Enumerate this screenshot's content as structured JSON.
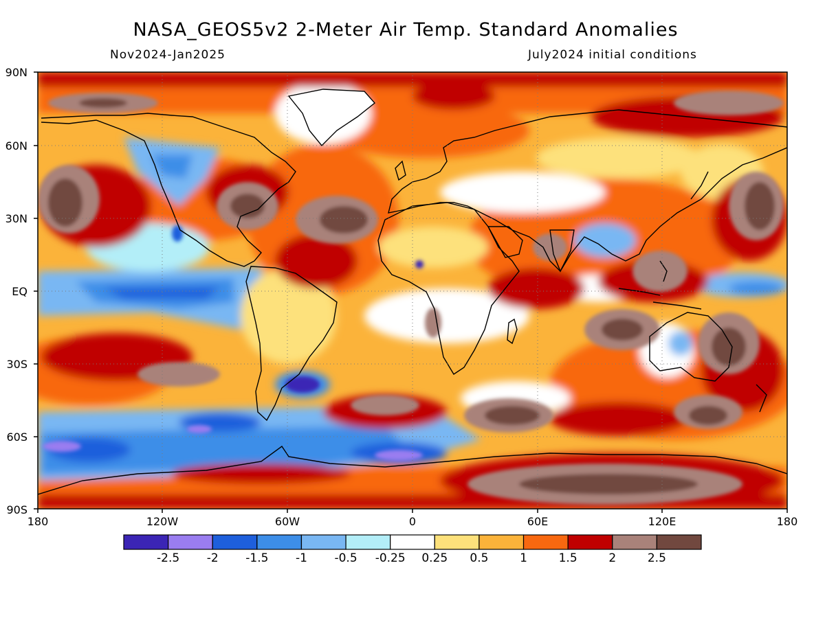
{
  "title": "NASA_GEOS5v2 2-Meter Air Temp. Standard Anomalies",
  "subtitle_left": "Nov2024-Jan2025",
  "subtitle_right": "July2024 initial conditions",
  "lat_labels": [
    "90N",
    "60N",
    "30N",
    "EQ",
    "30S",
    "60S",
    "90S"
  ],
  "lon_labels": [
    "180",
    "120W",
    "60W",
    "0",
    "60E",
    "120E",
    "180"
  ],
  "colorbar": {
    "labels": [
      "-2.5",
      "-2",
      "-1.5",
      "-1",
      "-0.5",
      "-0.25",
      "0.25",
      "0.5",
      "1",
      "1.5",
      "2",
      "2.5"
    ],
    "colors": [
      "#3b25b5",
      "#9a7df0",
      "#1e5fdc",
      "#3d8ee8",
      "#79b7f3",
      "#b3eef8",
      "#ffffff",
      "#fde17b",
      "#fbb33a",
      "#f86810",
      "#c00000",
      "#a9827a",
      "#71483f"
    ]
  },
  "chart_data": {
    "type": "heatmap",
    "title": "NASA_GEOS5v2 2-Meter Air Temp. Standard Anomalies",
    "subtitle": "Nov2024-Jan2025",
    "annotation": "July2024 initial conditions",
    "x_range": [
      -180,
      180
    ],
    "y_range": [
      -90,
      90
    ],
    "x_ticks": [
      "180",
      "120W",
      "60W",
      "0",
      "60E",
      "120E",
      "180"
    ],
    "y_ticks": [
      "90N",
      "60N",
      "30N",
      "EQ",
      "30S",
      "60S",
      "90S"
    ],
    "levels": [
      -2.5,
      -2,
      -1.5,
      -1,
      -0.5,
      -0.25,
      0.25,
      0.5,
      1,
      1.5,
      2,
      2.5
    ],
    "grid": true
  }
}
